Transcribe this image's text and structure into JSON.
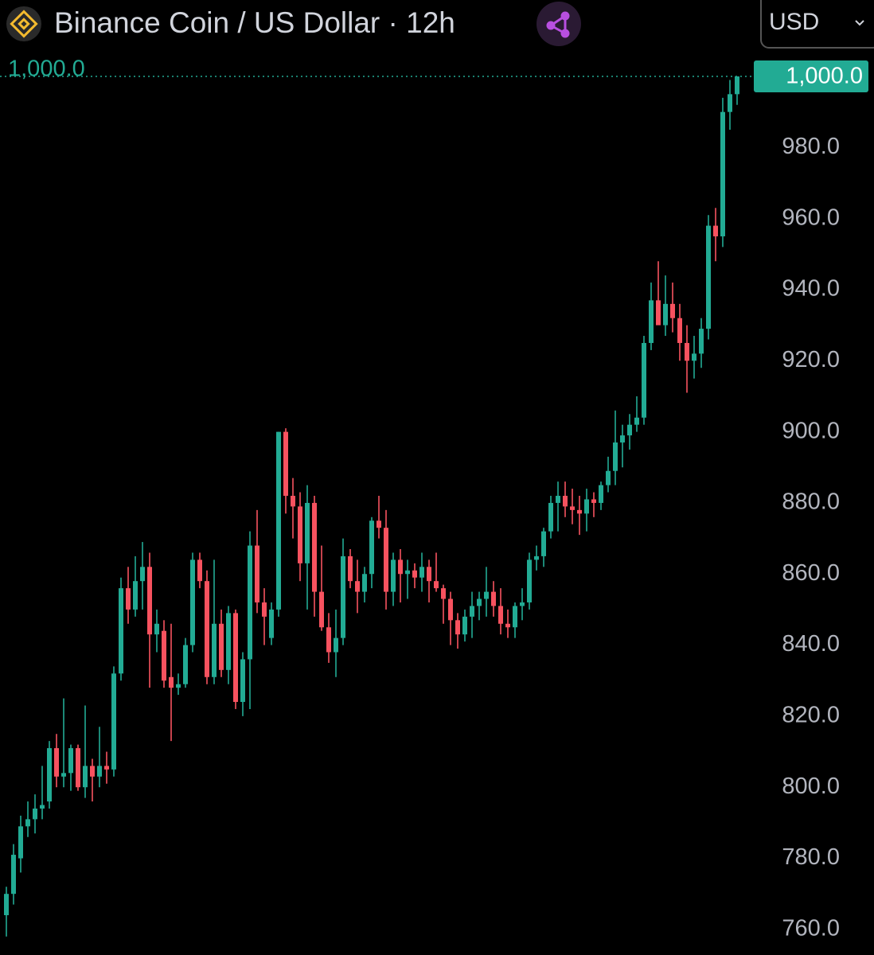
{
  "chart_data": {
    "type": "candlestick",
    "title": "Binance Coin / US Dollar · 12h",
    "currency": "USD",
    "up_color": "#22ab94",
    "down_color": "#f7525f",
    "ylim": [
      752.8,
      1021.5
    ],
    "yticks": [
      {
        "value": 760,
        "label": "760.0"
      },
      {
        "value": 780,
        "label": "780.0"
      },
      {
        "value": 800,
        "label": "800.0"
      },
      {
        "value": 820,
        "label": "820.0"
      },
      {
        "value": 840,
        "label": "840.0"
      },
      {
        "value": 860,
        "label": "860.0"
      },
      {
        "value": 880,
        "label": "880.0"
      },
      {
        "value": 900,
        "label": "900.0"
      },
      {
        "value": 920,
        "label": "920.0"
      },
      {
        "value": 940,
        "label": "940.0"
      },
      {
        "value": 960,
        "label": "960.0"
      },
      {
        "value": 980,
        "label": "980.0"
      }
    ],
    "grid": false,
    "last_price": {
      "value": 1000,
      "label": "1,000.0"
    },
    "open": [
      764,
      770,
      780,
      789,
      791,
      794,
      796,
      811,
      803,
      804,
      811,
      800,
      806,
      803,
      806,
      805,
      832,
      856,
      850,
      858,
      862,
      843,
      844,
      831,
      828,
      829,
      840,
      864,
      858,
      831,
      846,
      833,
      849,
      824,
      836,
      868,
      852,
      842,
      850,
      900,
      882,
      879,
      863,
      880,
      855,
      845,
      838,
      842,
      865,
      858,
      855,
      860,
      875,
      873,
      855,
      864,
      860,
      861,
      859,
      862,
      858,
      856,
      853,
      847,
      843,
      848,
      851,
      853,
      855,
      851,
      846,
      845,
      851,
      852,
      864,
      865,
      872,
      880,
      882,
      879,
      878,
      877,
      881,
      880,
      885,
      889,
      897,
      899,
      902,
      904,
      925,
      937,
      930,
      936,
      932,
      925,
      920,
      922,
      929,
      958,
      955,
      990,
      995
    ],
    "high": [
      772,
      784,
      792,
      796,
      798,
      806,
      813,
      815,
      825,
      812,
      812,
      823,
      808,
      817,
      810,
      834,
      859,
      862,
      865,
      869,
      866,
      850,
      847,
      846,
      832,
      842,
      866,
      866,
      861,
      864,
      850,
      851,
      850,
      838,
      872,
      878,
      856,
      852,
      900,
      901,
      887,
      883,
      885,
      882,
      868,
      849,
      850,
      870,
      867,
      864,
      862,
      876,
      882,
      878,
      866,
      867,
      864,
      863,
      866,
      864,
      866,
      857,
      855,
      849,
      850,
      855,
      855,
      862,
      858,
      856,
      850,
      852,
      856,
      866,
      868,
      873,
      882,
      886,
      886,
      884,
      882,
      884,
      883,
      886,
      893,
      906,
      902,
      905,
      910,
      927,
      942,
      948,
      944,
      942,
      936,
      930,
      927,
      932,
      961,
      963,
      994,
      999,
      1000
    ],
    "low": [
      758,
      767,
      776,
      786,
      787,
      791,
      794,
      800,
      800,
      799,
      799,
      797,
      796,
      800,
      801,
      803,
      830,
      846,
      848,
      850,
      828,
      838,
      828,
      813,
      826,
      828,
      838,
      856,
      829,
      829,
      831,
      829,
      822,
      820,
      822,
      849,
      840,
      840,
      848,
      877,
      870,
      858,
      850,
      848,
      844,
      835,
      831,
      840,
      856,
      849,
      852,
      856,
      870,
      850,
      851,
      852,
      853,
      856,
      855,
      852,
      855,
      846,
      840,
      839,
      841,
      842,
      847,
      848,
      848,
      843,
      842,
      842,
      847,
      850,
      861,
      862,
      870,
      872,
      876,
      874,
      871,
      872,
      876,
      878,
      883,
      885,
      890,
      895,
      900,
      902,
      923,
      932,
      927,
      928,
      920,
      911,
      915,
      918,
      926,
      948,
      952,
      985,
      992
    ],
    "close": [
      770,
      781,
      789,
      791,
      794,
      795,
      811,
      803,
      804,
      811,
      800,
      806,
      803,
      806,
      805,
      832,
      856,
      850,
      858,
      862,
      843,
      846,
      830,
      828,
      829,
      840,
      864,
      858,
      831,
      846,
      833,
      849,
      824,
      836,
      868,
      852,
      848,
      850,
      900,
      882,
      879,
      863,
      880,
      855,
      845,
      838,
      842,
      865,
      858,
      855,
      860,
      875,
      873,
      855,
      864,
      860,
      861,
      859,
      862,
      858,
      856,
      853,
      847,
      843,
      848,
      851,
      853,
      855,
      851,
      846,
      845,
      851,
      852,
      864,
      865,
      872,
      880,
      882,
      879,
      878,
      877,
      881,
      880,
      885,
      889,
      897,
      899,
      902,
      904,
      925,
      937,
      930,
      936,
      932,
      925,
      920,
      922,
      929,
      958,
      955,
      990,
      995,
      1000
    ]
  }
}
